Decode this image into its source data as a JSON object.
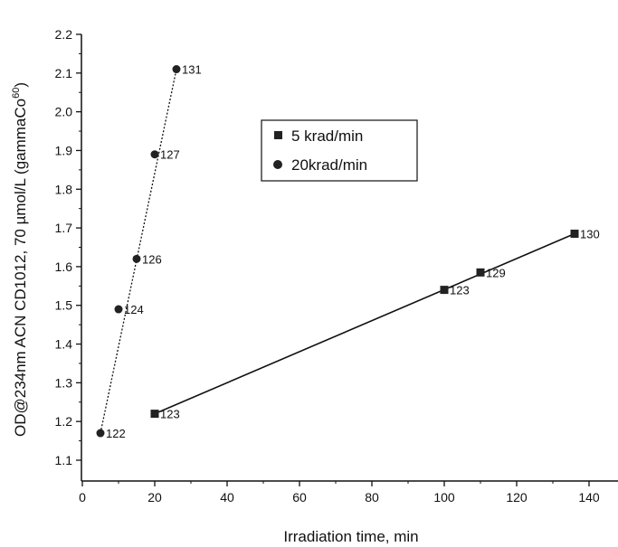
{
  "chart_data": {
    "type": "scatter",
    "title": "",
    "xlabel": "Irradiation time, min",
    "ylabel": "OD@234nm ACN CD1012, 70 µmol/L (gammaCo",
    "ylabel_superscript": "60",
    "ylabel_close": ")",
    "xlim": [
      0,
      145
    ],
    "ylim": [
      1.05,
      2.2
    ],
    "x_ticks": [
      0,
      20,
      40,
      60,
      80,
      100,
      120,
      140
    ],
    "y_ticks": [
      1.1,
      1.2,
      1.3,
      1.4,
      1.5,
      1.6,
      1.7,
      1.8,
      1.9,
      2.0,
      2.1,
      2.2
    ],
    "x_tick_labels": [
      "0",
      "20",
      "40",
      "60",
      "80",
      "100",
      "120",
      "140"
    ],
    "y_tick_labels": [
      "1.1",
      "1.2",
      "1.3",
      "1.4",
      "1.5",
      "1.6",
      "1.7",
      "1.8",
      "1.9",
      "2.0",
      "2.1",
      "2.2"
    ],
    "grid": false,
    "legend_position": "top-center",
    "series": [
      {
        "name": "5 krad/min",
        "marker": "square",
        "line": "solid",
        "points": [
          {
            "x": 20,
            "y": 1.22,
            "label": "123"
          },
          {
            "x": 100,
            "y": 1.54,
            "label": "123"
          },
          {
            "x": 110,
            "y": 1.585,
            "label": "129"
          },
          {
            "x": 136,
            "y": 1.685,
            "label": "130"
          }
        ]
      },
      {
        "name": "20krad/min",
        "marker": "circle",
        "line": "dotted",
        "points": [
          {
            "x": 5,
            "y": 1.17,
            "label": "122"
          },
          {
            "x": 10,
            "y": 1.49,
            "label": "124"
          },
          {
            "x": 15,
            "y": 1.62,
            "label": "126"
          },
          {
            "x": 20,
            "y": 1.89,
            "label": "127"
          },
          {
            "x": 26,
            "y": 2.11,
            "label": "131"
          }
        ]
      }
    ]
  }
}
